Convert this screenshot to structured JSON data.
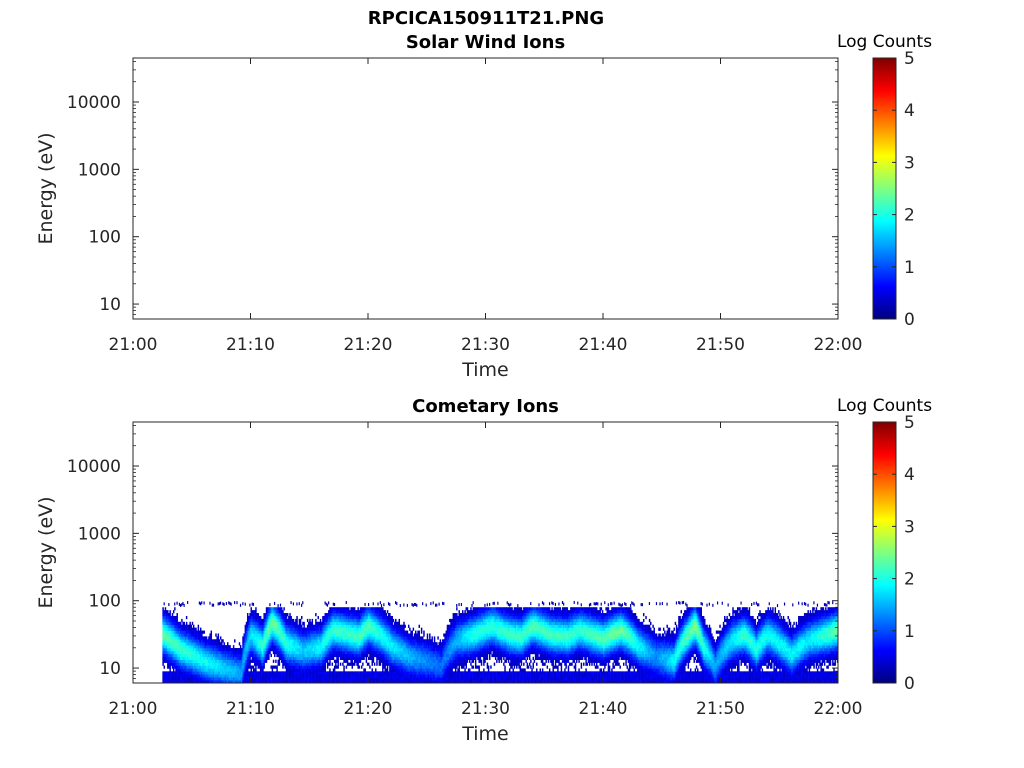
{
  "figure_title": "RPCICA150911T21.PNG",
  "chart_data": [
    {
      "type": "heatmap",
      "title": "Solar Wind Ions",
      "xlabel": "Time",
      "ylabel": "Energy (eV)",
      "x_ticks": [
        "21:00",
        "21:10",
        "21:20",
        "21:30",
        "21:40",
        "21:50",
        "22:00"
      ],
      "x_range_minutes": [
        0,
        60
      ],
      "y_scale": "log",
      "y_range": [
        6,
        45000
      ],
      "y_ticks": [
        10,
        100,
        1000,
        10000
      ],
      "y_tick_labels": [
        "10",
        "100",
        "1000",
        "10000"
      ],
      "colorbar": {
        "label": "Log Counts",
        "min": 0,
        "max": 5,
        "ticks": [
          "0",
          "1",
          "2",
          "3",
          "4",
          "5"
        ],
        "colormap": "jet"
      },
      "cells": []
    },
    {
      "type": "heatmap",
      "title": "Cometary Ions",
      "xlabel": "Time",
      "ylabel": "Energy (eV)",
      "x_ticks": [
        "21:00",
        "21:10",
        "21:20",
        "21:30",
        "21:40",
        "21:50",
        "22:00"
      ],
      "x_range_minutes": [
        0,
        60
      ],
      "y_scale": "log",
      "y_range": [
        6,
        45000
      ],
      "y_ticks": [
        10,
        100,
        1000,
        10000
      ],
      "y_tick_labels": [
        "10",
        "100",
        "1000",
        "10000"
      ],
      "colorbar": {
        "label": "Log Counts",
        "min": 0,
        "max": 5,
        "ticks": [
          "0",
          "1",
          "2",
          "3",
          "4",
          "5"
        ],
        "colormap": "jet"
      },
      "data_extent_minutes": [
        2.5,
        60
      ],
      "energy_floor_ev": 6,
      "energy_top_ev": 80,
      "peak_energy_ev": [
        [
          2.5,
          30
        ],
        [
          4.0,
          18
        ],
        [
          6.0,
          12
        ],
        [
          8.0,
          9
        ],
        [
          9.2,
          8
        ],
        [
          10.0,
          30
        ],
        [
          11.0,
          20
        ],
        [
          11.8,
          45
        ],
        [
          13.0,
          22
        ],
        [
          14.5,
          17
        ],
        [
          16.0,
          20
        ],
        [
          17.0,
          35
        ],
        [
          18.5,
          30
        ],
        [
          19.2,
          28
        ],
        [
          20.0,
          40
        ],
        [
          21.0,
          30
        ],
        [
          22.0,
          20
        ],
        [
          23.5,
          14
        ],
        [
          25.0,
          12
        ],
        [
          26.2,
          10
        ],
        [
          27.5,
          25
        ],
        [
          29.0,
          30
        ],
        [
          30.5,
          40
        ],
        [
          32.0,
          30
        ],
        [
          33.0,
          28
        ],
        [
          34.0,
          40
        ],
        [
          35.5,
          30
        ],
        [
          37.0,
          28
        ],
        [
          38.0,
          35
        ],
        [
          39.0,
          30
        ],
        [
          40.0,
          26
        ],
        [
          41.5,
          35
        ],
        [
          43.0,
          20
        ],
        [
          44.5,
          14
        ],
        [
          46.0,
          12
        ],
        [
          47.2,
          30
        ],
        [
          47.8,
          40
        ],
        [
          48.5,
          20
        ],
        [
          49.5,
          10
        ],
        [
          51.0,
          25
        ],
        [
          52.0,
          30
        ],
        [
          53.0,
          18
        ],
        [
          54.0,
          30
        ],
        [
          55.0,
          22
        ],
        [
          56.0,
          15
        ],
        [
          57.5,
          25
        ],
        [
          59.0,
          30
        ],
        [
          60.0,
          35
        ]
      ],
      "peak_log_counts": [
        [
          2.5,
          2.2
        ],
        [
          6.0,
          1.8
        ],
        [
          9.2,
          1.3
        ],
        [
          11.8,
          2.3
        ],
        [
          14.5,
          1.5
        ],
        [
          17.0,
          2.0
        ],
        [
          20.0,
          2.1
        ],
        [
          23.5,
          1.4
        ],
        [
          26.2,
          1.0
        ],
        [
          29.0,
          1.9
        ],
        [
          34.0,
          2.1
        ],
        [
          38.0,
          2.0
        ],
        [
          41.5,
          2.3
        ],
        [
          44.5,
          1.2
        ],
        [
          47.8,
          2.4
        ],
        [
          49.5,
          1.3
        ],
        [
          52.0,
          2.0
        ],
        [
          54.0,
          1.8
        ],
        [
          57.5,
          1.7
        ],
        [
          60.0,
          2.3
        ]
      ]
    }
  ]
}
